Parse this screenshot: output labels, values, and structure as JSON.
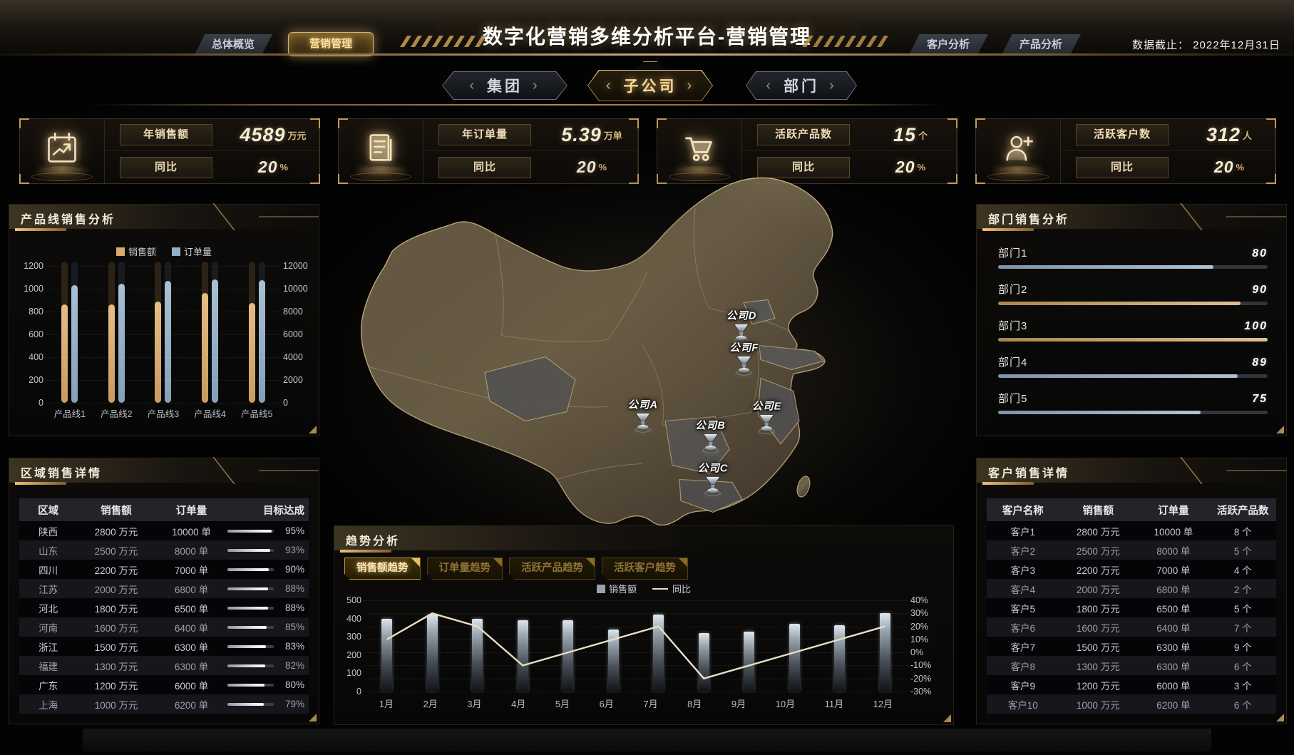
{
  "header": {
    "title": "数字化营销多维分析平台-营销管理",
    "nav_left": [
      {
        "label": "总体概览",
        "active": false
      },
      {
        "label": "营销管理",
        "active": true
      }
    ],
    "nav_right": [
      {
        "label": "客户分析"
      },
      {
        "label": "产品分析"
      }
    ],
    "data_cutoff": "数据截止： 2022年12月31日"
  },
  "level_tabs": [
    {
      "label": "集团",
      "active": false
    },
    {
      "label": "子公司",
      "active": true
    },
    {
      "label": "部门",
      "active": false
    }
  ],
  "kpis": [
    {
      "icon": "calendar-trend-icon",
      "label": "年销售额",
      "value": "4589",
      "unit": "万元",
      "sub_label": "同比",
      "sub_value": "20",
      "sub_unit": "%"
    },
    {
      "icon": "order-doc-icon",
      "label": "年订单量",
      "value": "5.39",
      "unit": "万单",
      "sub_label": "同比",
      "sub_value": "20",
      "sub_unit": "%"
    },
    {
      "icon": "cart-icon",
      "label": "活跃产品数",
      "value": "15",
      "unit": "个",
      "sub_label": "同比",
      "sub_value": "20",
      "sub_unit": "%"
    },
    {
      "icon": "customer-add-icon",
      "label": "活跃客户数",
      "value": "312",
      "unit": "人",
      "sub_label": "同比",
      "sub_value": "20",
      "sub_unit": "%"
    }
  ],
  "panels": {
    "product_line": {
      "title": "产品线销售分析"
    },
    "region_detail": {
      "title": "区域销售详情",
      "columns": [
        "区域",
        "销售额",
        "订单量",
        "目标达成"
      ],
      "rows": [
        {
          "region": "陕西",
          "sales": "2800 万元",
          "orders": "10000 单",
          "target": 95
        },
        {
          "region": "山东",
          "sales": "2500 万元",
          "orders": "8000 单",
          "target": 93
        },
        {
          "region": "四川",
          "sales": "2200 万元",
          "orders": "7000 单",
          "target": 90
        },
        {
          "region": "江苏",
          "sales": "2000 万元",
          "orders": "6800 单",
          "target": 88
        },
        {
          "region": "河北",
          "sales": "1800 万元",
          "orders": "6500 单",
          "target": 88
        },
        {
          "region": "河南",
          "sales": "1600 万元",
          "orders": "6400 单",
          "target": 85
        },
        {
          "region": "浙江",
          "sales": "1500 万元",
          "orders": "6300 单",
          "target": 83
        },
        {
          "region": "福建",
          "sales": "1300 万元",
          "orders": "6300 单",
          "target": 82
        },
        {
          "region": "广东",
          "sales": "1200 万元",
          "orders": "6000 单",
          "target": 80
        },
        {
          "region": "上海",
          "sales": "1000 万元",
          "orders": "6200 单",
          "target": 79
        }
      ]
    },
    "department": {
      "title": "部门销售分析",
      "rows": [
        {
          "label": "部门1",
          "value": 80,
          "color": "blue"
        },
        {
          "label": "部门2",
          "value": 90,
          "color": "tan"
        },
        {
          "label": "部门3",
          "value": 100,
          "color": "tan"
        },
        {
          "label": "部门4",
          "value": 89,
          "color": "blue"
        },
        {
          "label": "部门5",
          "value": 75,
          "color": "blue"
        }
      ]
    },
    "customer_detail": {
      "title": "客户销售详情",
      "columns": [
        "客户名称",
        "销售额",
        "订单量",
        "活跃产品数"
      ],
      "rows": [
        {
          "name": "客户1",
          "sales": "2800 万元",
          "orders": "10000 单",
          "products": "8 个"
        },
        {
          "name": "客户2",
          "sales": "2500 万元",
          "orders": "8000 单",
          "products": "5 个"
        },
        {
          "name": "客户3",
          "sales": "2200 万元",
          "orders": "7000 单",
          "products": "4 个"
        },
        {
          "name": "客户4",
          "sales": "2000 万元",
          "orders": "6800 单",
          "products": "2 个"
        },
        {
          "name": "客户5",
          "sales": "1800 万元",
          "orders": "6500 单",
          "products": "5 个"
        },
        {
          "name": "客户6",
          "sales": "1600 万元",
          "orders": "6400 单",
          "products": "7 个"
        },
        {
          "name": "客户7",
          "sales": "1500 万元",
          "orders": "6300 单",
          "products": "9 个"
        },
        {
          "name": "客户8",
          "sales": "1300 万元",
          "orders": "6300 单",
          "products": "6 个"
        },
        {
          "name": "客户9",
          "sales": "1200 万元",
          "orders": "6000 单",
          "products": "3 个"
        },
        {
          "name": "客户10",
          "sales": "1000 万元",
          "orders": "6200 单",
          "products": "6 个"
        }
      ]
    },
    "trend": {
      "title": "趋势分析",
      "tabs": [
        {
          "label": "销售额趋势",
          "active": true
        },
        {
          "label": "订单量趋势",
          "active": false
        },
        {
          "label": "活跃产品趋势",
          "active": false
        },
        {
          "label": "活跃客户趋势",
          "active": false
        }
      ]
    }
  },
  "map": {
    "markers": [
      {
        "label": "公司A",
        "x": 49.1,
        "y": 66.2
      },
      {
        "label": "公司B",
        "x": 59.5,
        "y": 71.5
      },
      {
        "label": "公司C",
        "x": 59.9,
        "y": 82.8
      },
      {
        "label": "公司D",
        "x": 64.3,
        "y": 42.8
      },
      {
        "label": "公司E",
        "x": 68.2,
        "y": 66.6
      },
      {
        "label": "公司F",
        "x": 64.7,
        "y": 51.3
      }
    ]
  },
  "chart_data": [
    {
      "type": "bar",
      "title": "产品线销售分析",
      "categories": [
        "产品线1",
        "产品线2",
        "产品线3",
        "产品线4",
        "产品线5"
      ],
      "series": [
        {
          "name": "销售额",
          "axis": "left",
          "values": [
            860,
            860,
            890,
            960,
            875
          ]
        },
        {
          "name": "订单量",
          "axis": "right",
          "values": [
            10300,
            10450,
            10700,
            10800,
            10750
          ]
        }
      ],
      "ylim_left": [
        0,
        1200
      ],
      "ylim_right": [
        0,
        12000
      ],
      "left_ticks": [
        "1200",
        "1000",
        "800",
        "600",
        "400",
        "200",
        "0"
      ],
      "right_ticks": [
        "12000",
        "10000",
        "8000",
        "6000",
        "4000",
        "2000",
        "0"
      ],
      "grid": true,
      "legend_position": "top"
    },
    {
      "type": "bar+line",
      "title": "趋势分析-销售额趋势",
      "categories": [
        "1月",
        "2月",
        "3月",
        "4月",
        "5月",
        "6月",
        "7月",
        "8月",
        "9月",
        "10月",
        "11月",
        "12月"
      ],
      "series": [
        {
          "name": "销售额",
          "type": "bar",
          "axis": "left",
          "values": [
            400,
            420,
            400,
            390,
            390,
            340,
            420,
            320,
            330,
            370,
            365,
            430
          ]
        },
        {
          "name": "同比",
          "type": "line",
          "axis": "right",
          "unit": "%",
          "values": [
            10,
            30,
            20,
            -10,
            0,
            10,
            20,
            -20,
            -10,
            0,
            10,
            20
          ]
        }
      ],
      "ylim_left": [
        0,
        500
      ],
      "ylim_right": [
        -30,
        40
      ],
      "left_ticks": [
        "500",
        "400",
        "300",
        "200",
        "100",
        "0"
      ],
      "right_ticks": [
        "40%",
        "30%",
        "20%",
        "10%",
        "0%",
        "-10%",
        "-20%",
        "-30%"
      ],
      "grid": true,
      "legend_position": "top"
    }
  ],
  "colors": {
    "gold_accent": "#d2a85e",
    "tan_series": "#d9a86c",
    "blue_series": "#92aec8",
    "silver_bar": "#aab3bc",
    "line_series": "#eadfc3"
  }
}
